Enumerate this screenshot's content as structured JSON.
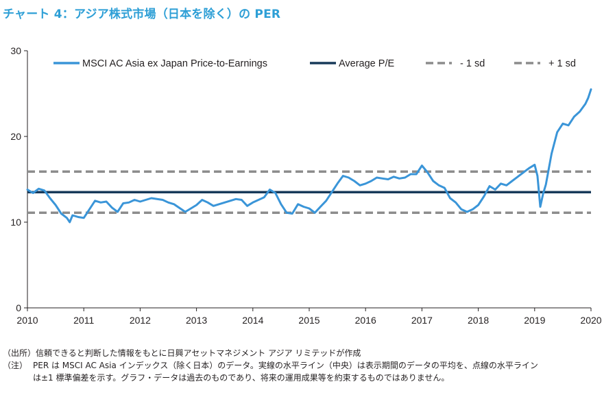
{
  "title": "チャート 4：アジア株式市場（日本を除く）の PER",
  "notes": {
    "source": "（出所）信頼できると判断した情報をもとに日興アセットマネジメント アジア リミテッドが作成",
    "note_prefix": "（注）",
    "note_line1": "PER は MSCI AC Asia インデックス（除く日本）のデータ。実線の水平ライン（中央）は表示期間のデータの平均を、点線の水平ライン",
    "note_line2": "は±1 標準偏差を示す。グラフ・データは過去のものであり、将来の運用成果等を約束するものではありません。"
  },
  "chart_data": {
    "type": "line",
    "title": "",
    "xlabel": "",
    "ylabel": "",
    "xlim": [
      2010,
      2020
    ],
    "ylim": [
      0,
      30
    ],
    "x_ticks": [
      "2010",
      "2011",
      "2012",
      "2013",
      "2014",
      "2015",
      "2016",
      "2017",
      "2018",
      "2019",
      "2020"
    ],
    "y_ticks": [
      "0",
      "10",
      "20",
      "30"
    ],
    "grid": false,
    "legend_position": "top",
    "series": [
      {
        "name": "MSCI AC Asia ex Japan Price-to-Earnings",
        "color": "#3a95d8",
        "style": "solid",
        "x": [
          2010.0,
          2010.1,
          2010.2,
          2010.3,
          2010.4,
          2010.5,
          2010.6,
          2010.7,
          2010.75,
          2010.8,
          2010.9,
          2011.0,
          2011.1,
          2011.2,
          2011.3,
          2011.4,
          2011.5,
          2011.6,
          2011.7,
          2011.8,
          2011.9,
          2012.0,
          2012.2,
          2012.4,
          2012.5,
          2012.6,
          2012.8,
          2013.0,
          2013.1,
          2013.2,
          2013.3,
          2013.5,
          2013.7,
          2013.8,
          2013.9,
          2014.0,
          2014.2,
          2014.3,
          2014.4,
          2014.5,
          2014.6,
          2014.7,
          2014.8,
          2014.9,
          2015.0,
          2015.1,
          2015.2,
          2015.3,
          2015.4,
          2015.5,
          2015.6,
          2015.7,
          2015.8,
          2015.9,
          2016.0,
          2016.1,
          2016.2,
          2016.3,
          2016.4,
          2016.5,
          2016.6,
          2016.7,
          2016.8,
          2016.9,
          2017.0,
          2017.1,
          2017.2,
          2017.3,
          2017.4,
          2017.5,
          2017.6,
          2017.7,
          2017.8,
          2017.9,
          2018.0,
          2018.1,
          2018.2,
          2018.3,
          2018.4,
          2018.5,
          2018.6,
          2018.7,
          2018.8,
          2018.9,
          2019.0,
          2019.05,
          2019.1,
          2019.15,
          2019.2,
          2019.3,
          2019.4,
          2019.5,
          2019.6,
          2019.7,
          2019.8,
          2019.9,
          2019.95,
          2020.0
        ],
        "values": [
          13.8,
          13.4,
          13.9,
          13.7,
          12.8,
          12.0,
          11.0,
          10.5,
          10.0,
          10.8,
          10.6,
          10.5,
          11.5,
          12.5,
          12.3,
          12.4,
          11.7,
          11.2,
          12.2,
          12.3,
          12.6,
          12.4,
          12.8,
          12.6,
          12.3,
          12.1,
          11.2,
          12.0,
          12.6,
          12.3,
          11.9,
          12.3,
          12.7,
          12.6,
          11.9,
          12.3,
          12.9,
          13.8,
          13.4,
          12.1,
          11.1,
          11.0,
          12.1,
          11.8,
          11.6,
          11.1,
          11.8,
          12.5,
          13.5,
          14.5,
          15.4,
          15.2,
          14.8,
          14.3,
          14.5,
          14.8,
          15.2,
          15.1,
          15.0,
          15.3,
          15.1,
          15.2,
          15.6,
          15.6,
          16.6,
          15.8,
          14.8,
          14.3,
          14.0,
          12.8,
          12.3,
          11.5,
          11.2,
          11.5,
          12.0,
          13.0,
          14.2,
          13.8,
          14.5,
          14.3,
          14.8,
          15.3,
          15.8,
          16.3,
          16.7,
          15.4,
          11.8,
          13.3,
          14.4,
          18.0,
          20.5,
          21.5,
          21.3,
          22.3,
          22.9,
          23.8,
          24.5,
          25.5
        ]
      },
      {
        "name": "Average P/E",
        "color": "#183a5a",
        "style": "solid",
        "value": 13.5
      },
      {
        "name": "- 1 sd",
        "color": "#8c8c8c",
        "style": "dashed",
        "value": 11.1
      },
      {
        "name": "+ 1 sd",
        "color": "#8c8c8c",
        "style": "dashed",
        "value": 15.9
      }
    ]
  }
}
